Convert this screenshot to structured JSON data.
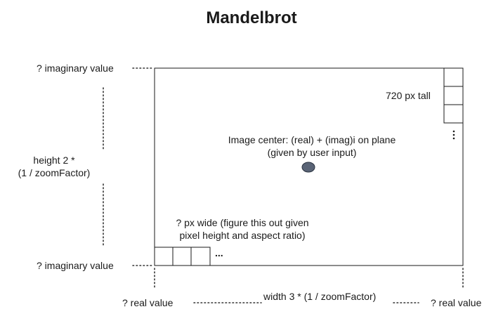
{
  "title": "Mandelbrot",
  "labels": {
    "imag_top": "? imaginary value",
    "imag_bottom": "? imaginary value",
    "height_line1": "height 2 *",
    "height_line2": "(1 / zoomFactor)",
    "px_tall": "720 px tall",
    "center_line1": "Image center: (real) + (imag)i on plane",
    "center_line2": "(given by user input)",
    "px_wide_line1": "? px wide (figure this out given",
    "px_wide_line2": "pixel height and aspect ratio)",
    "ellipsis_cols": "...",
    "real_left": "? real value",
    "width": "width 3 * (1 / zoomFactor)",
    "real_right": "? real value"
  },
  "colors": {
    "line": "#1a1a1a",
    "dotted": "#333333",
    "center_dot": "#5a6476"
  }
}
